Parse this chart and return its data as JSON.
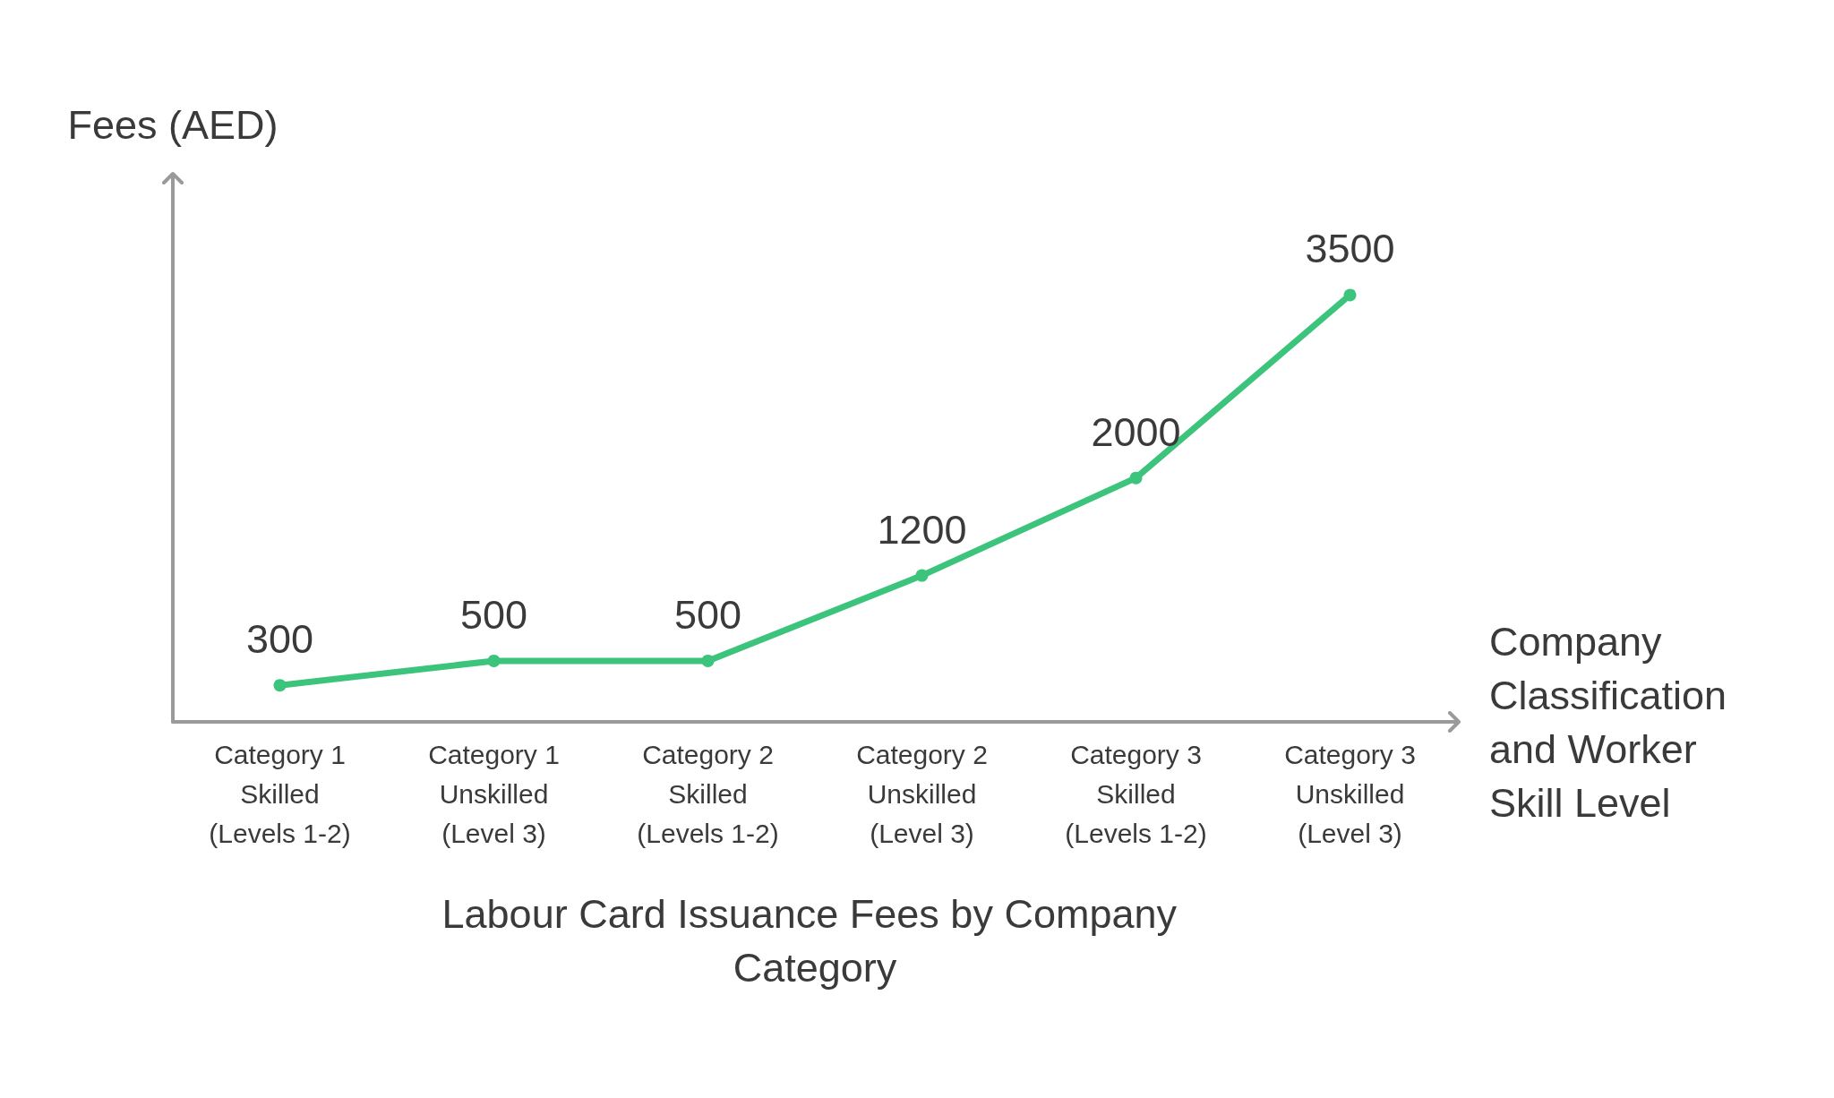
{
  "chart_data": {
    "type": "line",
    "title": "Labour Card Issuance Fees by Company Category",
    "xlabel": "Company Classification and Worker Skill Level",
    "ylabel": "Fees (AED)",
    "categories": [
      "Category 1\nSkilled\n(Levels 1-2)",
      "Category 1\nUnskilled\n(Level 3)",
      "Category 2\nSkilled\n(Levels 1-2)",
      "Category 2\nUnskilled\n(Level 3)",
      "Category 3\nSkilled\n(Levels 1-2)",
      "Category 3\nUnskilled\n(Level 3)"
    ],
    "series": [
      {
        "color": "#3cc47c",
        "values": [
          300,
          500,
          500,
          1200,
          2000,
          3500
        ]
      }
    ],
    "data_labels": true,
    "marker": "circle",
    "line_style": "solid"
  }
}
